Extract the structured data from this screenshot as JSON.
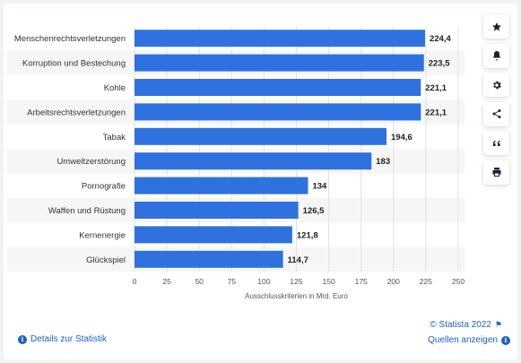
{
  "chart_data": {
    "type": "bar",
    "orientation": "horizontal",
    "categories": [
      "Menschenrechtsverletzungen",
      "Korruption und Bestechung",
      "Kohle",
      "Arbeitsrechtsverletzungen",
      "Tabak",
      "Umweltzerstörung",
      "Pornografie",
      "Waffen und Rüstung",
      "Kernenergie",
      "Glückspiel"
    ],
    "values": [
      224.4,
      223.5,
      221.1,
      221.1,
      194.6,
      183,
      134,
      126.5,
      121.8,
      114.7
    ],
    "value_labels": [
      "224,4",
      "223,5",
      "221,1",
      "221,1",
      "194,6",
      "183",
      "134",
      "126,5",
      "121,8",
      "114,7"
    ],
    "xlabel": "Ausschlusskriterien in Mrd. Euro",
    "ylabel": "",
    "xlim": [
      0,
      250
    ],
    "xticks": [
      "0",
      "25",
      "50",
      "75",
      "100",
      "125",
      "150",
      "175",
      "200",
      "225",
      "250"
    ],
    "grid": "vertical",
    "legend": "none"
  },
  "colors": {
    "bar": "#2f72df",
    "band": "#f6f6f6",
    "grid": "#e2e2e2",
    "label": "#333333",
    "value": "#222222",
    "link": "#1d5fc7"
  },
  "sidebar": {
    "buttons": [
      {
        "icon": "star-icon",
        "name": "favorite-button"
      },
      {
        "icon": "bell-icon",
        "name": "notification-button"
      },
      {
        "icon": "gear-icon",
        "name": "settings-button"
      },
      {
        "icon": "share-icon",
        "name": "share-button"
      },
      {
        "icon": "quote-icon",
        "name": "cite-button"
      },
      {
        "icon": "print-icon",
        "name": "print-button"
      }
    ]
  },
  "footer": {
    "copyright": "© Statista 2022",
    "details": "Details zur Statistik",
    "sources": "Quellen anzeigen"
  }
}
